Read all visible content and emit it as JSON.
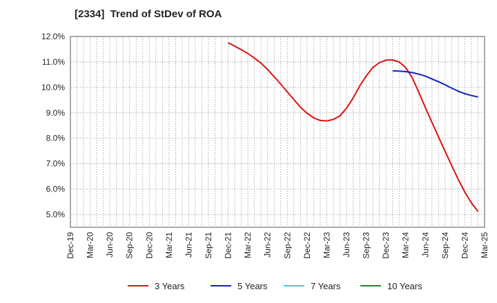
{
  "chart_data": {
    "type": "line",
    "title": "[2334]  Trend of StDev of ROA",
    "xlabel": "",
    "ylabel": "",
    "x_ticks": [
      "Dec-19",
      "Mar-20",
      "Jun-20",
      "Sep-20",
      "Dec-20",
      "Mar-21",
      "Jun-21",
      "Sep-21",
      "Dec-21",
      "Mar-22",
      "Jun-22",
      "Sep-22",
      "Dec-22",
      "Mar-23",
      "Jun-23",
      "Sep-23",
      "Dec-23",
      "Mar-24",
      "Jun-24",
      "Sep-24",
      "Dec-24",
      "Mar-25"
    ],
    "y_ticks": [
      "12.0%",
      "11.0%",
      "10.0%",
      "9.0%",
      "8.0%",
      "7.0%",
      "6.0%",
      "5.0%"
    ],
    "ylim": [
      4.5,
      12.0
    ],
    "y_unit": "%",
    "grid": true,
    "legend_position": "bottom",
    "series": [
      {
        "name": "3 Years",
        "color": "#dd1111",
        "points": [
          [
            "Dec-21",
            11.75
          ],
          [
            "Jan-22",
            11.62
          ],
          [
            "Feb-22",
            11.48
          ],
          [
            "Mar-22",
            11.33
          ],
          [
            "Apr-22",
            11.15
          ],
          [
            "May-22",
            10.95
          ],
          [
            "Jun-22",
            10.7
          ],
          [
            "Jul-22",
            10.42
          ],
          [
            "Aug-22",
            10.12
          ],
          [
            "Sep-22",
            9.82
          ],
          [
            "Oct-22",
            9.52
          ],
          [
            "Nov-22",
            9.22
          ],
          [
            "Dec-22",
            8.98
          ],
          [
            "Jan-23",
            8.8
          ],
          [
            "Feb-23",
            8.7
          ],
          [
            "Mar-23",
            8.68
          ],
          [
            "Apr-23",
            8.74
          ],
          [
            "May-23",
            8.88
          ],
          [
            "Jun-23",
            9.18
          ],
          [
            "Jul-23",
            9.58
          ],
          [
            "Aug-23",
            10.05
          ],
          [
            "Sep-23",
            10.45
          ],
          [
            "Oct-23",
            10.78
          ],
          [
            "Nov-23",
            10.97
          ],
          [
            "Dec-23",
            11.07
          ],
          [
            "Jan-24",
            11.08
          ],
          [
            "Feb-24",
            11.0
          ],
          [
            "Mar-24",
            10.78
          ],
          [
            "Apr-24",
            10.38
          ],
          [
            "May-24",
            9.8
          ],
          [
            "Jun-24",
            9.2
          ],
          [
            "Jul-24",
            8.62
          ],
          [
            "Aug-24",
            8.05
          ],
          [
            "Sep-24",
            7.48
          ],
          [
            "Oct-24",
            6.92
          ],
          [
            "Nov-24",
            6.38
          ],
          [
            "Dec-24",
            5.88
          ],
          [
            "Jan-25",
            5.45
          ],
          [
            "Feb-25",
            5.12
          ]
        ]
      },
      {
        "name": "5 Years",
        "color": "#1122bb",
        "points": [
          [
            "Jan-24",
            10.65
          ],
          [
            "Feb-24",
            10.64
          ],
          [
            "Mar-24",
            10.62
          ],
          [
            "Apr-24",
            10.58
          ],
          [
            "May-24",
            10.52
          ],
          [
            "Jun-24",
            10.44
          ],
          [
            "Jul-24",
            10.33
          ],
          [
            "Aug-24",
            10.22
          ],
          [
            "Sep-24",
            10.1
          ],
          [
            "Oct-24",
            9.97
          ],
          [
            "Nov-24",
            9.85
          ],
          [
            "Dec-24",
            9.75
          ],
          [
            "Jan-25",
            9.68
          ],
          [
            "Feb-25",
            9.62
          ]
        ]
      },
      {
        "name": "7 Years",
        "color": "#22dddd",
        "points": []
      },
      {
        "name": "10 Years",
        "color": "#228822",
        "points": []
      }
    ]
  }
}
